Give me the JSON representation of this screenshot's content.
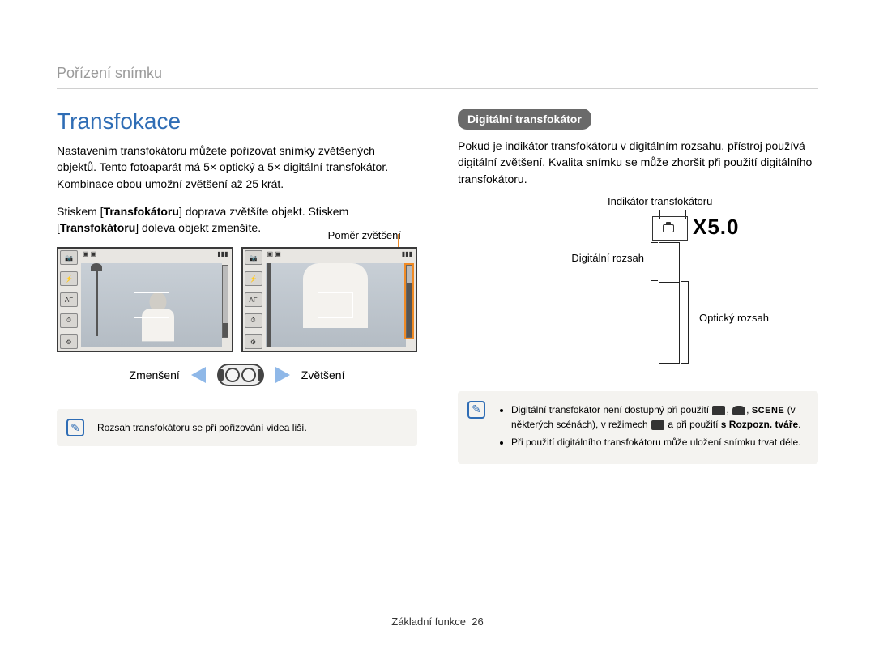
{
  "header": {
    "section_label": "Pořízení snímku"
  },
  "left": {
    "title": "Transfokace",
    "intro": "Nastavením transfokátoru můžete pořizovat snímky zvětšených objektů. Tento fotoaparát má 5× optický a 5× digitální transfokátor. Kombinace obou umožní zvětšení až 25 krát.",
    "press_prefix": "Stiskem [",
    "press_bold1": "Transfokátoru",
    "press_mid": "] doprava zvětšíte objekt. Stiskem [",
    "press_bold2": "Transfokátoru",
    "press_suffix": "] doleva objekt zmenšíte.",
    "ratio_label": "Poměr zvětšení",
    "zoom_out_label": "Zmenšení",
    "zoom_in_label": "Zvětšení",
    "note": "Rozsah transfokátoru se při pořizování videa liší."
  },
  "right": {
    "pill": "Digitální transfokátor",
    "intro": "Pokud je indikátor transfokátoru v digitálním rozsahu, přístroj používá digitální zvětšení. Kvalita snímku se může zhoršit při použití digitálního transfokátoru.",
    "indicator_label": "Indikátor transfokátoru",
    "digital_label": "Digitální rozsah",
    "optical_label": "Optický rozsah",
    "zoom_value": "X5.0",
    "note1_a": "Digitální transfokátor není dostupný při použití ",
    "note1_b": " (v některých scénách), v režimech ",
    "note1_c": " a při použití ",
    "note1_bold": "s Rozpozn. tváře",
    "note1_d": ".",
    "scene_word": "SCENE",
    "note2": "Při použití digitálního transfokátoru může uložení snímku trvat déle."
  },
  "footer": {
    "label": "Základní funkce",
    "page": "26"
  },
  "colors": {
    "accent_blue": "#2f6db5",
    "orange": "#f08a24",
    "arrow_blue": "#8fb8e8",
    "pill_gray": "#6a6a6a",
    "note_bg": "#f4f3f0"
  }
}
